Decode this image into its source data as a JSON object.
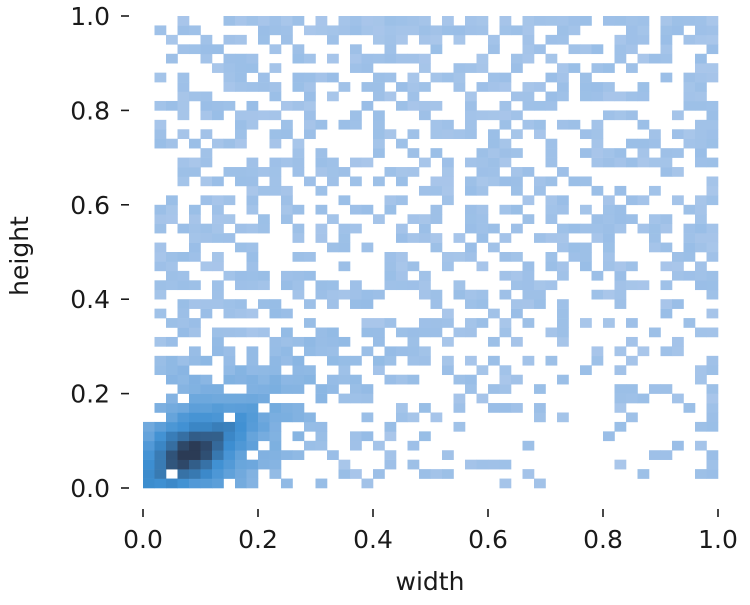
{
  "chart_data": {
    "type": "heatmap",
    "subtype": "2d-histogram",
    "xlabel": "width",
    "ylabel": "height",
    "xlim": [
      0.0,
      1.0
    ],
    "ylim": [
      0.0,
      1.0
    ],
    "x_ticks": [
      "0.0",
      "0.2",
      "0.4",
      "0.6",
      "0.8",
      "1.0"
    ],
    "y_ticks": [
      "0.0",
      "0.2",
      "0.4",
      "0.6",
      "0.8",
      "1.0"
    ],
    "bins": 50,
    "grid": false,
    "spines": false,
    "legend": "none",
    "colormap": {
      "low": "#a9c6ea",
      "mid": "#3d8fd2",
      "high": "#2b3b55"
    },
    "density_model": {
      "description": "Counts concentrated near the origin along the diagonal, sparse elsewhere",
      "peak_x": 0.08,
      "peak_y": 0.08
    }
  }
}
